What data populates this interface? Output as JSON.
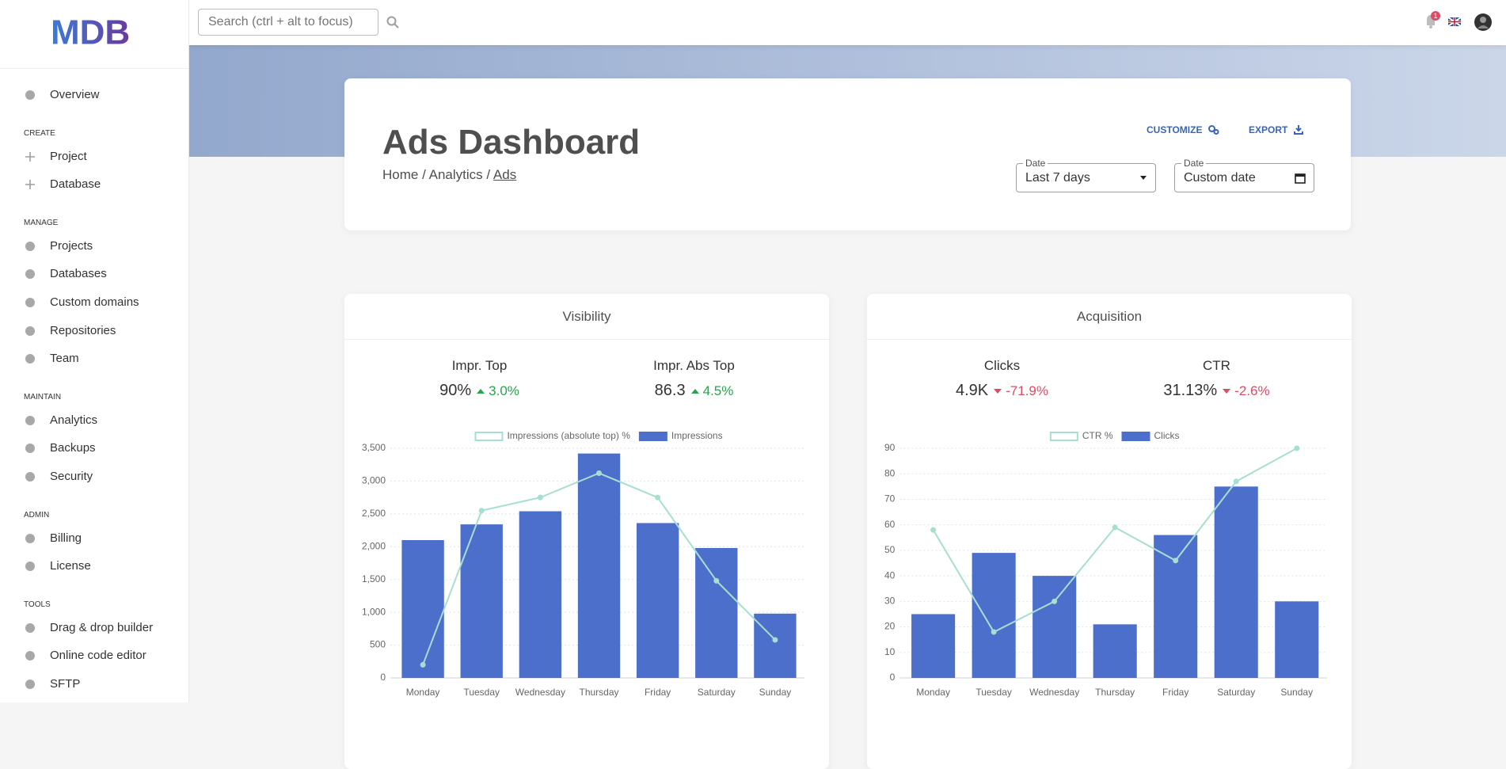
{
  "header": {
    "logo": "MDB",
    "search_placeholder": "Search (ctrl + alt to focus)",
    "notifications": 1
  },
  "sidebar": {
    "top": [
      "Overview"
    ],
    "sections": [
      {
        "title": "CREATE",
        "items": [
          "Project",
          "Database"
        ]
      },
      {
        "title": "MANAGE",
        "items": [
          "Projects",
          "Databases",
          "Custom domains",
          "Repositories",
          "Team"
        ]
      },
      {
        "title": "MAINTAIN",
        "items": [
          "Analytics",
          "Backups",
          "Security"
        ]
      },
      {
        "title": "ADMIN",
        "items": [
          "Billing",
          "License"
        ]
      },
      {
        "title": "TOOLS",
        "items": [
          "Drag & drop builder",
          "Online code editor",
          "SFTP"
        ]
      }
    ]
  },
  "page": {
    "title": "Ads Dashboard",
    "breadcrumb": [
      "Home",
      "Analytics",
      "Ads"
    ],
    "separator": "/",
    "actions": [
      "CUSTOMIZE",
      "EXPORT"
    ],
    "filters": [
      {
        "label": "Date",
        "value": "Last 7 days"
      },
      {
        "label": "Date",
        "value": "Custom date"
      }
    ]
  },
  "cards": [
    {
      "title": "Visibility",
      "stats": [
        {
          "label": "Impr. Top",
          "value": "90%",
          "change": "3.0%",
          "trend": "up"
        },
        {
          "label": "Impr. Abs Top",
          "value": "86.3",
          "change": "4.5%",
          "trend": "up"
        }
      ],
      "chart": {
        "type": "bar",
        "categories": [
          "Monday",
          "Tuesday",
          "Wednesday",
          "Thursday",
          "Friday",
          "Saturday",
          "Sunday"
        ],
        "series": [
          {
            "name": "Impressions (absolute top) %",
            "type": "line",
            "color": "#a6dfd2",
            "values": [
              200,
              2550,
              2750,
              3120,
              2750,
              1480,
              580
            ]
          },
          {
            "name": "Impressions",
            "type": "bar",
            "color": "#4d6fcc",
            "values": [
              2100,
              2340,
              2540,
              3420,
              2360,
              1980,
              980
            ]
          }
        ],
        "ylim": [
          0,
          3500
        ],
        "yticks": [
          0,
          500,
          {
            "value": 1000,
            "label": "1,000"
          },
          {
            "value": 1500,
            "label": "1,500"
          },
          {
            "value": 2000,
            "label": "2,000"
          },
          {
            "value": 2500,
            "label": "2,500"
          },
          {
            "value": 3000,
            "label": "3,000"
          },
          {
            "value": 3500,
            "label": "3,500"
          }
        ],
        "grid": true
      }
    },
    {
      "title": "Acquisition",
      "stats": [
        {
          "label": "Clicks",
          "value": "4.9K",
          "change": "-71.9%",
          "trend": "down"
        },
        {
          "label": "CTR",
          "value": "31.13%",
          "change": "-2.6%",
          "trend": "down"
        }
      ],
      "chart": {
        "type": "bar",
        "categories": [
          "Monday",
          "Tuesday",
          "Wednesday",
          "Thursday",
          "Friday",
          "Saturday",
          "Sunday"
        ],
        "series": [
          {
            "name": "CTR %",
            "type": "line",
            "color": "#a6dfd2",
            "values": [
              58,
              18,
              30,
              59,
              46,
              77,
              90
            ]
          },
          {
            "name": "Clicks",
            "type": "bar",
            "color": "#4d6fcc",
            "values": [
              25,
              49,
              40,
              21,
              56,
              75,
              30
            ]
          }
        ],
        "ylim": [
          0,
          90
        ],
        "yticks": [
          0,
          10,
          20,
          30,
          40,
          50,
          60,
          70,
          80,
          90
        ],
        "grid": true
      }
    }
  ]
}
